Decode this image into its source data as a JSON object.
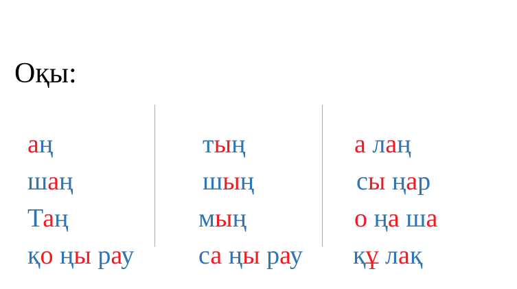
{
  "title": "Оқы:",
  "colors": {
    "red": "#ee1c25",
    "blue": "#2e75b6",
    "title": "#000000",
    "divider": "#8bc37a"
  },
  "columns": [
    {
      "words": [
        {
          "text": "аң",
          "segments": [
            {
              "t": "а",
              "c": "red"
            },
            {
              "t": "ң",
              "c": "blue"
            }
          ]
        },
        {
          "text": "шаң",
          "segments": [
            {
              "t": "ш",
              "c": "blue"
            },
            {
              "t": "а",
              "c": "red"
            },
            {
              "t": "ң",
              "c": "blue"
            }
          ]
        },
        {
          "text": "Таң",
          "segments": [
            {
              "t": "Т",
              "c": "blue"
            },
            {
              "t": "а",
              "c": "red"
            },
            {
              "t": "ң",
              "c": "blue"
            }
          ]
        },
        {
          "text": "қо ңы рау",
          "segments": [
            {
              "t": "қ",
              "c": "blue"
            },
            {
              "t": "о",
              "c": "red"
            },
            {
              "t": " ң",
              "c": "blue"
            },
            {
              "t": "ы",
              "c": "red"
            },
            {
              "t": " р",
              "c": "blue"
            },
            {
              "t": "а",
              "c": "red"
            },
            {
              "t": "у",
              "c": "blue"
            }
          ]
        }
      ]
    },
    {
      "words": [
        {
          "text": "тың",
          "segments": [
            {
              "t": "т",
              "c": "blue"
            },
            {
              "t": "ы",
              "c": "red"
            },
            {
              "t": "ң",
              "c": "blue"
            }
          ]
        },
        {
          "text": "шың",
          "segments": [
            {
              "t": "ш",
              "c": "blue"
            },
            {
              "t": "ы",
              "c": "red"
            },
            {
              "t": "ң",
              "c": "blue"
            }
          ]
        },
        {
          "text": "мың",
          "segments": [
            {
              "t": "м",
              "c": "blue"
            },
            {
              "t": "ы",
              "c": "red"
            },
            {
              "t": "ң",
              "c": "blue"
            }
          ]
        },
        {
          "text": "са ңы рау",
          "segments": [
            {
              "t": "с",
              "c": "blue"
            },
            {
              "t": "а",
              "c": "red"
            },
            {
              "t": " ң",
              "c": "blue"
            },
            {
              "t": "ы",
              "c": "red"
            },
            {
              "t": " р",
              "c": "blue"
            },
            {
              "t": "а",
              "c": "red"
            },
            {
              "t": "у",
              "c": "blue"
            }
          ]
        }
      ]
    },
    {
      "words": [
        {
          "text": "а лаң",
          "segments": [
            {
              "t": "а",
              "c": "red"
            },
            {
              "t": " л",
              "c": "blue"
            },
            {
              "t": "а",
              "c": "red"
            },
            {
              "t": "ң",
              "c": "blue"
            }
          ]
        },
        {
          "text": "сы ңар",
          "segments": [
            {
              "t": "с",
              "c": "blue"
            },
            {
              "t": "ы",
              "c": "red"
            },
            {
              "t": " ң",
              "c": "blue"
            },
            {
              "t": "а",
              "c": "red"
            },
            {
              "t": "р",
              "c": "blue"
            }
          ]
        },
        {
          "text": "о ңа ша",
          "segments": [
            {
              "t": "о",
              "c": "red"
            },
            {
              "t": " ң",
              "c": "blue"
            },
            {
              "t": "а",
              "c": "red"
            },
            {
              "t": " ш",
              "c": "blue"
            },
            {
              "t": "а",
              "c": "red"
            }
          ]
        },
        {
          "text": "құ лақ",
          "segments": [
            {
              "t": "қ",
              "c": "blue"
            },
            {
              "t": "ұ",
              "c": "red"
            },
            {
              "t": " л",
              "c": "blue"
            },
            {
              "t": "а",
              "c": "red"
            },
            {
              "t": "қ",
              "c": "blue"
            }
          ]
        }
      ]
    }
  ]
}
